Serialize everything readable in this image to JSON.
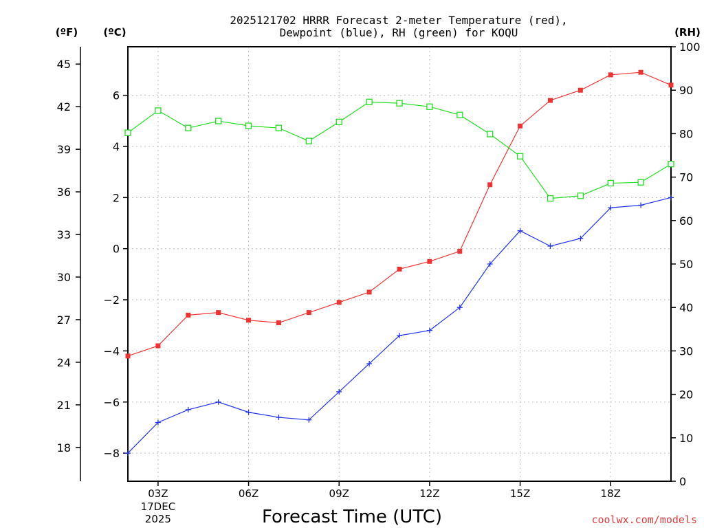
{
  "chart_data": {
    "type": "line",
    "title_line1": "2025121702 HRRR Forecast 2-meter Temperature (red),",
    "title_line2": "Dewpoint (blue), RH (green) for KOQU",
    "xlabel": "Forecast Time (UTC)",
    "credit": "coolwx.com/models",
    "left_axis_f_label": "(ºF)",
    "left_axis_c_label": "(ºC)",
    "right_axis_label": "(RH)",
    "x_hours": [
      2,
      3,
      4,
      5,
      6,
      7,
      8,
      9,
      10,
      11,
      12,
      13,
      14,
      15,
      16,
      17,
      18,
      19,
      20
    ],
    "x_range": [
      2,
      20
    ],
    "x_ticks": [
      {
        "hour": 3,
        "label": "03Z",
        "date_line1": "17DEC",
        "date_line2": "2025"
      },
      {
        "hour": 6,
        "label": "06Z"
      },
      {
        "hour": 9,
        "label": "09Z"
      },
      {
        "hour": 12,
        "label": "12Z"
      },
      {
        "hour": 15,
        "label": "15Z"
      },
      {
        "hour": 18,
        "label": "18Z"
      }
    ],
    "c_range": [
      -9.1,
      7.9
    ],
    "c_ticks": [
      6,
      4,
      2,
      0,
      -2,
      -4,
      -6,
      -8
    ],
    "c_tick_labels": [
      "6",
      "4",
      "2",
      "0",
      "−2",
      "−4",
      "−6",
      "−8"
    ],
    "f_ticks": [
      45,
      42,
      39,
      36,
      33,
      30,
      27,
      24,
      21,
      18
    ],
    "rh_range": [
      0,
      100
    ],
    "rh_ticks": [
      100,
      90,
      80,
      70,
      60,
      50,
      40,
      30,
      20,
      10,
      0
    ],
    "grid": true,
    "series": [
      {
        "name": "Temperature",
        "units": "C",
        "axis": "c",
        "color": "#ee3333",
        "marker": "filled-square",
        "values": [
          -4.2,
          -3.8,
          -2.6,
          -2.5,
          -2.8,
          -2.9,
          -2.5,
          -2.1,
          -1.7,
          -0.8,
          -0.5,
          -0.1,
          2.5,
          4.8,
          5.8,
          6.2,
          6.8,
          6.9,
          6.4
        ]
      },
      {
        "name": "Dewpoint",
        "units": "C",
        "axis": "c",
        "color": "#2233ee",
        "marker": "plus",
        "values": [
          -8.0,
          -6.8,
          -6.3,
          -6.0,
          -6.4,
          -6.6,
          -6.7,
          -5.6,
          -4.5,
          -3.4,
          -3.2,
          -2.3,
          -0.6,
          0.7,
          0.1,
          0.4,
          1.6,
          1.7,
          2.0
        ]
      },
      {
        "name": "Relative Humidity",
        "units": "%",
        "axis": "rh",
        "color": "#22dd22",
        "marker": "open-square",
        "values": [
          80.2,
          85.3,
          81.3,
          82.9,
          81.8,
          81.3,
          78.3,
          82.7,
          87.3,
          87.0,
          86.2,
          84.3,
          79.9,
          74.8,
          65.1,
          65.7,
          68.6,
          68.8,
          73.0
        ]
      }
    ]
  }
}
